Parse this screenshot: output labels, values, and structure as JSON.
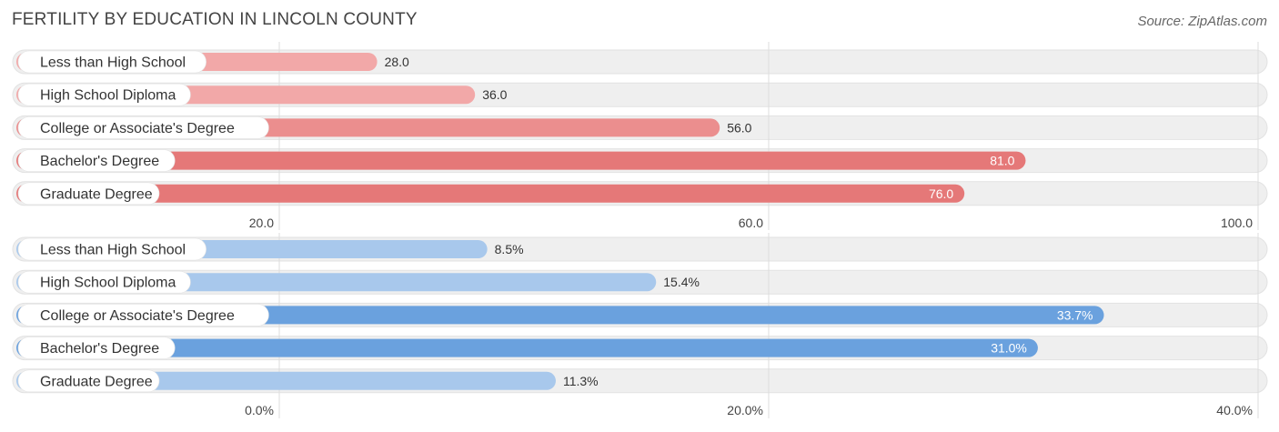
{
  "title": "FERTILITY BY EDUCATION IN LINCOLN COUNTY",
  "source": "Source: ZipAtlas.com",
  "colors": {
    "track": "#efefef",
    "grid": "#dddddd",
    "red_light": "#f2a8a8",
    "red_mid": "#eb8e8e",
    "red_dark": "#e57878",
    "blue_light": "#a8c8ec",
    "blue_mid": "#8fb8e6",
    "blue_dark": "#6aa1de"
  },
  "chart_data": [
    {
      "type": "bar",
      "orientation": "horizontal",
      "categories": [
        "Less than High School",
        "High School Diploma",
        "College or Associate's Degree",
        "Bachelor's Degree",
        "Graduate Degree"
      ],
      "values": [
        28.0,
        36.0,
        56.0,
        81.0,
        76.0
      ],
      "value_labels": [
        "28.0",
        "36.0",
        "56.0",
        "81.0",
        "76.0"
      ],
      "xlim": [
        20.0,
        100.0
      ],
      "ticks": [
        20.0,
        60.0,
        100.0
      ],
      "tick_labels": [
        "20.0",
        "60.0",
        "100.0"
      ],
      "grid": true,
      "color_scheme": "red"
    },
    {
      "type": "bar",
      "orientation": "horizontal",
      "categories": [
        "Less than High School",
        "High School Diploma",
        "College or Associate's Degree",
        "Bachelor's Degree",
        "Graduate Degree"
      ],
      "values": [
        8.5,
        15.4,
        33.7,
        31.0,
        11.3
      ],
      "value_labels": [
        "8.5%",
        "15.4%",
        "33.7%",
        "31.0%",
        "11.3%"
      ],
      "xlim": [
        0.0,
        40.0
      ],
      "ticks": [
        0.0,
        20.0,
        40.0
      ],
      "tick_labels": [
        "0.0%",
        "20.0%",
        "40.0%"
      ],
      "grid": true,
      "color_scheme": "blue"
    }
  ]
}
